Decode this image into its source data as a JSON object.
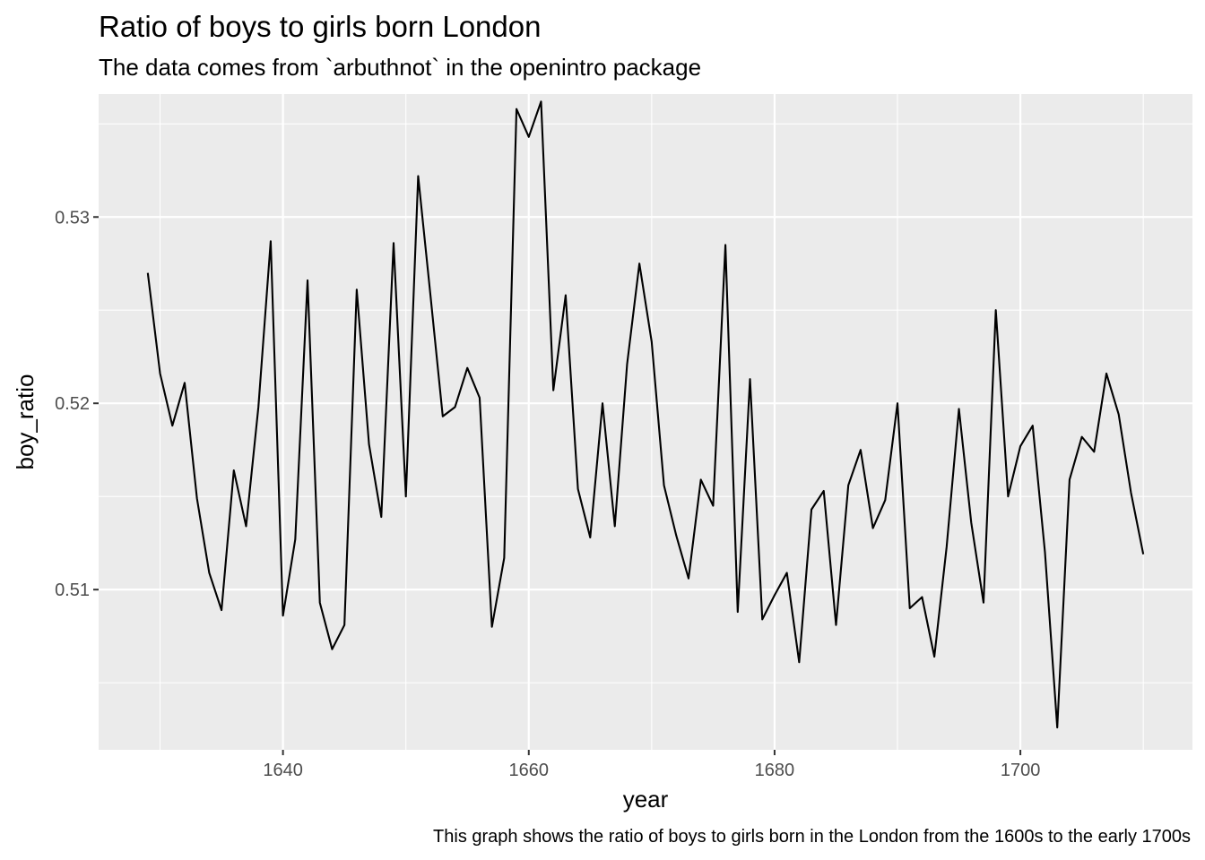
{
  "chart_data": {
    "type": "line",
    "title": "Ratio of boys to girls born London",
    "subtitle": "The data comes from `arbuthnot` in the openintro package",
    "xlabel": "year",
    "ylabel": "boy_ratio",
    "caption": "This graph shows the ratio of boys to girls born in the London from the 1600s to the early 1700s",
    "xlim": [
      1625,
      1714
    ],
    "ylim": [
      0.5014,
      0.5366
    ],
    "x_ticks": [
      1640,
      1660,
      1680,
      1700
    ],
    "x_tick_labels": [
      "1640",
      "1660",
      "1680",
      "1700"
    ],
    "y_ticks": [
      0.51,
      0.52,
      0.53
    ],
    "y_tick_labels": [
      "0.51",
      "0.52",
      "0.53"
    ],
    "grid": true,
    "panel_color": "#ebebeb",
    "grid_color": "#ffffff",
    "line_color": "#000000",
    "series": [
      {
        "x": [
          1629,
          1630,
          1631,
          1632,
          1633,
          1634,
          1635,
          1636,
          1637,
          1638,
          1639,
          1640,
          1641,
          1642,
          1643,
          1644,
          1645,
          1646,
          1647,
          1648,
          1649,
          1650,
          1651,
          1652,
          1653,
          1654,
          1655,
          1656,
          1657,
          1658,
          1659,
          1660,
          1661,
          1662,
          1663,
          1664,
          1665,
          1666,
          1667,
          1668,
          1669,
          1670,
          1671,
          1672,
          1673,
          1674,
          1675,
          1676,
          1677,
          1678,
          1679,
          1680,
          1681,
          1682,
          1683,
          1684,
          1685,
          1686,
          1687,
          1688,
          1689,
          1690,
          1691,
          1692,
          1693,
          1694,
          1695,
          1696,
          1697,
          1698,
          1699,
          1700,
          1701,
          1702,
          1703,
          1704,
          1705,
          1706,
          1707,
          1708,
          1709,
          1710
        ],
        "values": [
          0.527,
          0.5216,
          0.5188,
          0.5211,
          0.5149,
          0.5109,
          0.5089,
          0.5164,
          0.5134,
          0.5198,
          0.5287,
          0.5086,
          0.5127,
          0.5266,
          0.5093,
          0.5068,
          0.5081,
          0.5261,
          0.5178,
          0.5139,
          0.5286,
          0.515,
          0.5322,
          0.5258,
          0.5193,
          0.5198,
          0.5219,
          0.5203,
          0.508,
          0.5117,
          0.5358,
          0.5343,
          0.5362,
          0.5207,
          0.5258,
          0.5154,
          0.5128,
          0.52,
          0.5134,
          0.5221,
          0.5275,
          0.5233,
          0.5156,
          0.5129,
          0.5106,
          0.5159,
          0.5145,
          0.5285,
          0.5088,
          0.5213,
          0.5084,
          0.5097,
          0.5109,
          0.5061,
          0.5143,
          0.5153,
          0.5081,
          0.5156,
          0.5175,
          0.5133,
          0.5148,
          0.52,
          0.509,
          0.5096,
          0.5064,
          0.5123,
          0.5197,
          0.5136,
          0.5093,
          0.525,
          0.515,
          0.5177,
          0.5188,
          0.512,
          0.5026,
          0.5159,
          0.5182,
          0.5174,
          0.5216,
          0.5194,
          0.5152,
          0.5119
        ]
      }
    ]
  }
}
